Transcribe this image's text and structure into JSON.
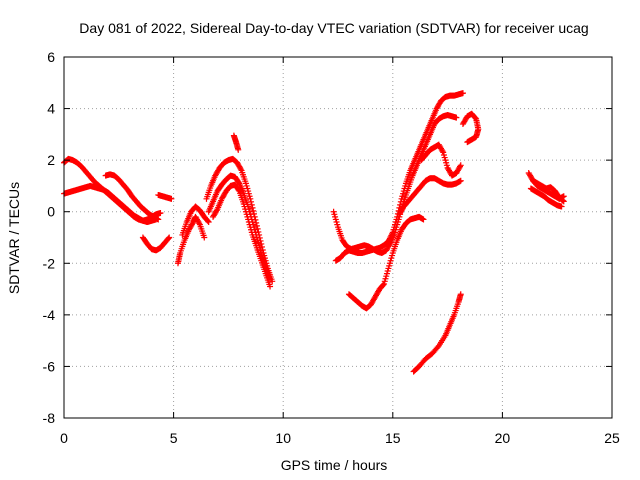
{
  "chart_data": {
    "type": "scatter",
    "title": "Day 081 of 2022, Sidereal Day-to-day VTEC variation (SDTVAR) for receiver ucag",
    "xlabel": "GPS time / hours",
    "ylabel": "SDTVAR / TECUs",
    "xlim": [
      0,
      25
    ],
    "ylim": [
      -8,
      6
    ],
    "xticks": [
      0,
      5,
      10,
      15,
      20,
      25
    ],
    "yticks": [
      -8,
      -6,
      -4,
      -2,
      0,
      2,
      4,
      6
    ],
    "grid": true,
    "marker": "+",
    "color": "#ff0000",
    "series": [
      {
        "x": [
          0.0,
          0.2,
          0.4,
          0.6,
          0.8,
          1.0,
          1.2,
          1.4,
          1.6,
          1.8,
          2.0,
          2.2,
          2.4,
          2.6,
          2.8,
          3.0,
          3.2,
          3.4,
          3.6,
          3.8,
          4.0,
          4.2,
          4.4
        ],
        "y": [
          1.9,
          2.05,
          2.0,
          1.9,
          1.75,
          1.55,
          1.35,
          1.15,
          1.0,
          0.85,
          0.7,
          0.55,
          0.4,
          0.25,
          0.1,
          -0.05,
          -0.2,
          -0.3,
          -0.35,
          -0.3,
          -0.2,
          -0.1,
          -0.05
        ]
      },
      {
        "x": [
          0.0,
          0.2,
          0.4,
          0.6,
          0.8,
          1.0,
          1.2,
          1.4,
          1.6,
          1.8,
          2.0,
          2.2,
          2.4,
          2.6,
          2.8,
          3.0,
          3.2,
          3.4,
          3.6,
          3.8,
          4.0,
          4.2
        ],
        "y": [
          0.7,
          0.75,
          0.8,
          0.85,
          0.9,
          0.95,
          1.0,
          0.95,
          0.9,
          0.85,
          0.75,
          0.6,
          0.45,
          0.3,
          0.15,
          0.0,
          -0.15,
          -0.25,
          -0.35,
          -0.4,
          -0.35,
          -0.3
        ]
      },
      {
        "x": [
          1.9,
          2.1,
          2.3,
          2.5,
          2.7,
          2.9,
          3.1,
          3.3,
          3.5,
          3.7,
          3.9,
          4.1,
          4.3
        ],
        "y": [
          1.4,
          1.45,
          1.4,
          1.25,
          1.05,
          0.85,
          0.6,
          0.4,
          0.2,
          0.05,
          -0.1,
          -0.2,
          -0.3
        ]
      },
      {
        "x": [
          3.6,
          3.8,
          4.0,
          4.2,
          4.4,
          4.6,
          4.8
        ],
        "y": [
          -1.0,
          -1.25,
          -1.45,
          -1.5,
          -1.4,
          -1.2,
          -1.0
        ]
      },
      {
        "x": [
          4.3,
          4.5,
          4.7,
          4.9
        ],
        "y": [
          0.65,
          0.6,
          0.55,
          0.5
        ]
      },
      {
        "x": [
          5.2,
          5.3,
          5.5,
          5.7,
          5.9,
          6.0,
          6.2,
          6.4
        ],
        "y": [
          -2.0,
          -1.6,
          -1.1,
          -0.7,
          -0.4,
          -0.2,
          -0.5,
          -1.0
        ]
      },
      {
        "x": [
          5.4,
          5.6,
          5.8,
          6.0,
          6.2,
          6.4,
          6.6
        ],
        "y": [
          -0.9,
          -0.4,
          0.0,
          0.2,
          0.05,
          -0.2,
          -0.4
        ]
      },
      {
        "x": [
          6.5,
          6.7,
          6.9,
          7.1,
          7.3,
          7.5,
          7.7,
          7.9,
          8.1,
          8.3,
          8.5,
          8.7,
          8.9,
          9.1,
          9.3,
          9.5
        ],
        "y": [
          0.5,
          1.0,
          1.4,
          1.7,
          1.9,
          2.0,
          2.05,
          1.9,
          1.6,
          1.1,
          0.5,
          -0.2,
          -0.9,
          -1.6,
          -2.2,
          -2.7
        ]
      },
      {
        "x": [
          6.6,
          6.8,
          7.0,
          7.2,
          7.4,
          7.6,
          7.8,
          8.0,
          8.2,
          8.4,
          8.6,
          8.8,
          9.0,
          9.2,
          9.4
        ],
        "y": [
          0.0,
          0.4,
          0.8,
          1.05,
          1.25,
          1.4,
          1.35,
          1.1,
          0.7,
          0.2,
          -0.4,
          -1.0,
          -1.6,
          -2.1,
          -2.6
        ]
      },
      {
        "x": [
          6.8,
          7.0,
          7.2,
          7.4,
          7.6,
          7.8,
          8.0,
          8.2,
          8.4,
          8.6,
          8.8,
          9.0,
          9.2,
          9.4
        ],
        "y": [
          -0.2,
          0.1,
          0.5,
          0.8,
          1.0,
          1.05,
          0.8,
          0.3,
          -0.3,
          -0.9,
          -1.4,
          -1.9,
          -2.4,
          -2.9
        ]
      },
      {
        "x": [
          7.75,
          7.85,
          7.95
        ],
        "y": [
          2.95,
          2.7,
          2.4
        ]
      },
      {
        "x": [
          12.3,
          12.5,
          12.7,
          12.9,
          13.1,
          13.3,
          13.5,
          13.7,
          13.9,
          14.1,
          14.3,
          14.5,
          14.7,
          14.9,
          15.1,
          15.3,
          15.5,
          15.7,
          15.9,
          16.1,
          16.3,
          16.5,
          16.7,
          16.9,
          17.1,
          17.3,
          17.5,
          17.7,
          17.9
        ],
        "y": [
          0.0,
          -0.6,
          -1.1,
          -1.35,
          -1.45,
          -1.4,
          -1.35,
          -1.3,
          -1.35,
          -1.45,
          -1.55,
          -1.6,
          -1.5,
          -1.2,
          -0.8,
          -0.2,
          0.4,
          0.9,
          1.4,
          1.8,
          2.2,
          2.6,
          3.0,
          3.4,
          3.6,
          3.7,
          3.75,
          3.7,
          3.65
        ]
      },
      {
        "x": [
          12.4,
          12.6,
          12.8,
          13.0,
          13.2,
          13.4,
          13.6,
          13.8,
          14.0,
          14.2,
          14.4,
          14.6,
          14.8,
          15.0,
          15.2,
          15.4,
          15.6,
          15.8,
          16.0,
          16.2,
          16.4,
          16.6,
          16.8,
          17.0,
          17.2,
          17.4,
          17.6,
          17.8,
          18.0,
          18.2
        ],
        "y": [
          -1.9,
          -1.8,
          -1.6,
          -1.5,
          -1.55,
          -1.6,
          -1.6,
          -1.55,
          -1.5,
          -1.45,
          -1.4,
          -1.3,
          -1.15,
          -0.8,
          -0.2,
          0.5,
          1.1,
          1.6,
          2.0,
          2.4,
          2.8,
          3.2,
          3.6,
          4.0,
          4.3,
          4.45,
          4.5,
          4.5,
          4.55,
          4.6
        ]
      },
      {
        "x": [
          15.3,
          15.5,
          15.7,
          15.9,
          16.1,
          16.3,
          16.5,
          16.7,
          16.9,
          17.1,
          17.3,
          17.5,
          17.7,
          17.9,
          18.1
        ],
        "y": [
          -0.1,
          0.2,
          0.4,
          0.6,
          0.8,
          1.0,
          1.2,
          1.3,
          1.3,
          1.2,
          1.1,
          1.05,
          1.05,
          1.1,
          1.2
        ]
      },
      {
        "x": [
          16.3,
          16.5,
          16.7,
          16.9,
          17.1,
          17.3,
          17.5,
          17.7,
          17.9,
          18.1
        ],
        "y": [
          2.0,
          2.2,
          2.4,
          2.5,
          2.6,
          2.3,
          1.7,
          1.4,
          1.5,
          1.8
        ]
      },
      {
        "x": [
          18.2,
          18.4,
          18.6,
          18.8,
          18.9,
          18.8,
          18.6,
          18.4
        ],
        "y": [
          3.4,
          3.7,
          3.8,
          3.6,
          3.2,
          2.9,
          2.8,
          2.7
        ]
      },
      {
        "x": [
          13.0,
          13.2,
          13.4,
          13.6,
          13.8,
          14.0,
          14.2,
          14.4,
          14.6,
          14.8,
          15.0,
          15.2,
          15.4,
          15.6,
          15.8,
          16.0,
          16.2,
          16.4
        ],
        "y": [
          -3.2,
          -3.35,
          -3.5,
          -3.65,
          -3.75,
          -3.6,
          -3.3,
          -3.0,
          -2.8,
          -2.2,
          -1.6,
          -1.1,
          -0.7,
          -0.45,
          -0.3,
          -0.25,
          -0.2,
          -0.3
        ]
      },
      {
        "x": [
          15.95,
          16.2,
          16.5,
          16.8,
          17.1,
          17.4,
          17.6,
          17.8,
          18.0,
          18.1
        ],
        "y": [
          -6.2,
          -6.0,
          -5.7,
          -5.5,
          -5.2,
          -4.8,
          -4.4,
          -4.0,
          -3.5,
          -3.2
        ]
      },
      {
        "x": [
          21.2,
          21.4,
          21.6,
          21.8,
          22.0,
          22.2,
          22.4,
          22.6,
          22.8
        ],
        "y": [
          1.5,
          1.2,
          1.0,
          0.9,
          0.8,
          0.7,
          0.6,
          0.5,
          0.6
        ]
      },
      {
        "x": [
          21.3,
          21.5,
          21.7,
          21.9,
          22.1,
          22.3,
          22.5,
          22.7
        ],
        "y": [
          0.9,
          0.8,
          0.7,
          0.6,
          0.45,
          0.35,
          0.25,
          0.2
        ]
      },
      {
        "x": [
          21.4,
          21.6,
          21.8,
          22.0,
          22.2,
          22.4,
          22.6,
          22.8
        ],
        "y": [
          1.2,
          1.1,
          1.0,
          0.9,
          0.95,
          0.8,
          0.55,
          0.4
        ]
      }
    ]
  }
}
